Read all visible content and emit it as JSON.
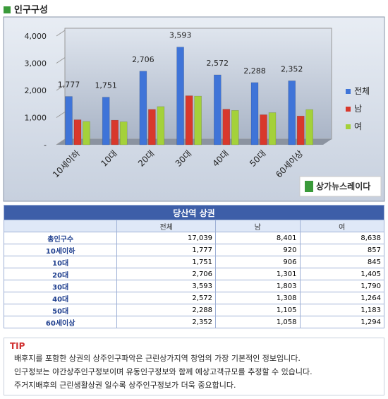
{
  "header": {
    "title": "인구구성"
  },
  "chart_data": {
    "type": "bar",
    "categories": [
      "10세이하",
      "10대",
      "20대",
      "30대",
      "40대",
      "50대",
      "60세이상"
    ],
    "series": [
      {
        "name": "전체",
        "color": "#3f74d8",
        "values": [
          1777,
          1751,
          2706,
          3593,
          2572,
          2288,
          2352
        ],
        "value_labels": [
          "1,777",
          "1,751",
          "2,706",
          "3,593",
          "2,572",
          "2,288",
          "2,352"
        ]
      },
      {
        "name": "남",
        "color": "#d8382c",
        "values": [
          920,
          906,
          1301,
          1803,
          1308,
          1105,
          1058
        ]
      },
      {
        "name": "여",
        "color": "#a4d13a",
        "values": [
          857,
          845,
          1405,
          1790,
          1264,
          1183,
          1294
        ]
      }
    ],
    "ylim": [
      0,
      4000
    ],
    "yticks": [
      {
        "value": 0,
        "label": "-"
      },
      {
        "value": 1000,
        "label": "1,000"
      },
      {
        "value": 2000,
        "label": "2,000"
      },
      {
        "value": 3000,
        "label": "3,000"
      },
      {
        "value": 4000,
        "label": "4,000"
      }
    ],
    "legend": "right"
  },
  "logo": {
    "text": "상가뉴스레이다"
  },
  "table": {
    "title": "당산역 상권",
    "columns": [
      "전체",
      "남",
      "여"
    ],
    "rows": [
      [
        "총인구수",
        "17,039",
        "8,401",
        "8,638"
      ],
      [
        "10세이하",
        "1,777",
        "920",
        "857"
      ],
      [
        "10대",
        "1,751",
        "906",
        "845"
      ],
      [
        "20대",
        "2,706",
        "1,301",
        "1,405"
      ],
      [
        "30대",
        "3,593",
        "1,803",
        "1,790"
      ],
      [
        "40대",
        "2,572",
        "1,308",
        "1,264"
      ],
      [
        "50대",
        "2,288",
        "1,105",
        "1,183"
      ],
      [
        "60세이상",
        "2,352",
        "1,058",
        "1,294"
      ]
    ]
  },
  "tip": {
    "label": "TIP",
    "lines": [
      "배후지를 포함한 상권의 상주인구파악은 근린상가지역 창업의 가장 기본적인 정보입니다.",
      "인구정보는 야간상주인구정보이며 유동인구정보와 함께 예상고객규모를 추정할 수 있습니다.",
      "주거지배후의 근린생활상권 일수록 상주인구정보가 더욱 중요합니다."
    ]
  }
}
